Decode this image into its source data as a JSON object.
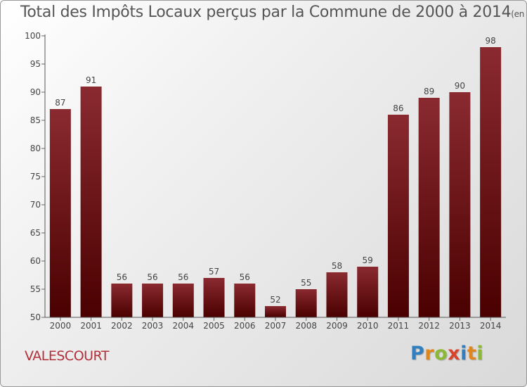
{
  "title": "Total des Impôts Locaux perçus par la Commune de 2000 à 2014",
  "unit_note": "(en milliers d'€)",
  "commune": "VALESCOURT",
  "logo": {
    "letters": [
      "P",
      "r",
      "o",
      "x",
      "i",
      "t",
      "i"
    ]
  },
  "colors": {
    "bar_top": "#8a2a30",
    "bar_bottom": "#4a0000",
    "commune_text": "#b2303a"
  },
  "chart_data": {
    "type": "bar",
    "categories": [
      "2000",
      "2001",
      "2002",
      "2003",
      "2004",
      "2005",
      "2006",
      "2007",
      "2008",
      "2009",
      "2010",
      "2011",
      "2012",
      "2013",
      "2014"
    ],
    "values": [
      87,
      91,
      56,
      56,
      56,
      57,
      56,
      52,
      55,
      58,
      59,
      86,
      89,
      90,
      98
    ],
    "ylim": [
      50,
      100
    ],
    "yticks": [
      50,
      55,
      60,
      65,
      70,
      75,
      80,
      85,
      90,
      95,
      100
    ],
    "grid": false,
    "data_labels": true
  }
}
